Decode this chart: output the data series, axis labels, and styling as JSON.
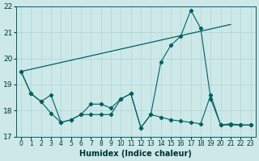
{
  "xlabel": "Humidex (Indice chaleur)",
  "xlim": [
    -0.5,
    23.5
  ],
  "ylim": [
    17,
    22
  ],
  "yticks": [
    17,
    18,
    19,
    20,
    21,
    22
  ],
  "xticks": [
    0,
    1,
    2,
    3,
    4,
    5,
    6,
    7,
    8,
    9,
    10,
    11,
    12,
    13,
    14,
    15,
    16,
    17,
    18,
    19,
    20,
    21,
    22,
    23
  ],
  "bg_color": "#cde8e8",
  "grid_color": "#b0d4d4",
  "line_color": "#006060",
  "line1_no_marker": {
    "x": [
      0,
      21
    ],
    "y": [
      19.5,
      21.3
    ]
  },
  "line2_wavy": {
    "x": [
      0,
      1,
      2,
      3,
      4,
      5,
      6,
      7,
      8,
      9,
      10,
      11,
      12,
      13,
      14,
      15,
      16,
      17,
      18,
      19,
      20,
      21,
      22,
      23
    ],
    "y": [
      19.5,
      18.65,
      18.35,
      17.9,
      17.55,
      17.65,
      17.85,
      18.25,
      18.25,
      18.1,
      18.45,
      18.65,
      17.35,
      17.85,
      19.85,
      20.5,
      20.85,
      21.85,
      21.15,
      18.45,
      17.45,
      17.5,
      17.45,
      17.45
    ]
  },
  "line3_flat": {
    "x": [
      0,
      1,
      2,
      3,
      4,
      5,
      6,
      7,
      8,
      9,
      10,
      11,
      12,
      13,
      14,
      15,
      16,
      17,
      18,
      19,
      20,
      21,
      22,
      23
    ],
    "y": [
      19.5,
      18.65,
      18.35,
      18.6,
      17.55,
      17.65,
      17.85,
      17.85,
      17.85,
      17.85,
      18.45,
      18.65,
      17.35,
      17.85,
      17.75,
      17.65,
      17.6,
      17.55,
      17.5,
      18.6,
      17.45,
      17.45,
      17.45,
      17.45
    ]
  }
}
